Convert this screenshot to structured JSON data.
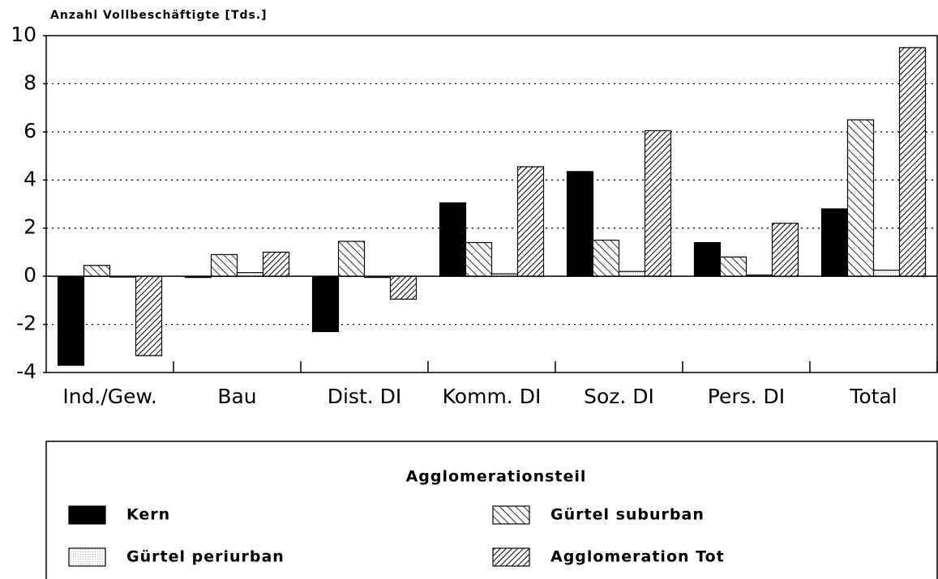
{
  "chart_data": {
    "type": "bar",
    "y_label": "Anzahl Vollbeschäftigte [Tds.]",
    "categories": [
      "Ind./Gew.",
      "Bau",
      "Dist. DI",
      "Komm. DI",
      "Soz. DI",
      "Pers. DI",
      "Total"
    ],
    "series": [
      {
        "name": "Kern",
        "values": [
          -3.7,
          -0.05,
          -2.3,
          3.05,
          4.35,
          1.4,
          2.8
        ]
      },
      {
        "name": "Gürtel suburban",
        "values": [
          0.45,
          0.9,
          1.45,
          1.4,
          1.5,
          0.8,
          6.5
        ]
      },
      {
        "name": "Gürtel periurban",
        "values": [
          0,
          0.15,
          -0.05,
          0.1,
          0.2,
          0.05,
          0.25
        ]
      },
      {
        "name": "Agglomeration Tot",
        "values": [
          -3.3,
          1.0,
          -0.95,
          4.55,
          6.05,
          2.2,
          9.5
        ]
      }
    ],
    "legend_title": "Agglomerationsteil",
    "ylim": [
      -4,
      10
    ],
    "yticks": [
      -4,
      -2,
      0,
      2,
      4,
      6,
      8,
      10
    ],
    "grid": true
  }
}
